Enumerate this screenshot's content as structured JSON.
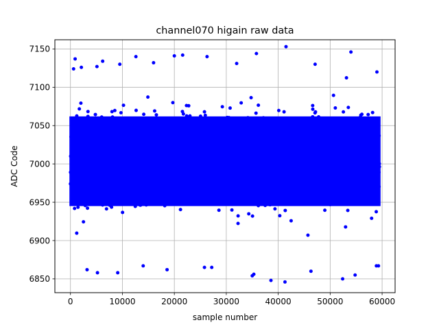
{
  "chart_data": {
    "type": "scatter",
    "title": "channel070 higain raw data",
    "xlabel": "sample number",
    "ylabel": "ADC Code",
    "xlim": [
      -3000,
      62500
    ],
    "ylim": [
      6832,
      7162
    ],
    "xticks": [
      0,
      10000,
      20000,
      30000,
      40000,
      50000,
      60000
    ],
    "xtick_labels": [
      "0",
      "10000",
      "20000",
      "30000",
      "40000",
      "50000",
      "60000"
    ],
    "yticks": [
      6850,
      6900,
      6950,
      7000,
      7050,
      7100,
      7150
    ],
    "ytick_labels": [
      "6850",
      "6900",
      "6950",
      "7000",
      "7050",
      "7100",
      "7150"
    ],
    "grid": true,
    "marker_color": "#0000ff",
    "n_samples": 59500,
    "dense_band": [
      6920,
      7095
    ],
    "outliers": [
      [
        600,
        7124
      ],
      [
        900,
        7137
      ],
      [
        2100,
        7126
      ],
      [
        5100,
        7127
      ],
      [
        6200,
        7134
      ],
      [
        9500,
        7130
      ],
      [
        12600,
        7140
      ],
      [
        16000,
        7132
      ],
      [
        20000,
        7141
      ],
      [
        21600,
        7142
      ],
      [
        26300,
        7140
      ],
      [
        32000,
        7131
      ],
      [
        35800,
        7144
      ],
      [
        41500,
        7153
      ],
      [
        47100,
        7130
      ],
      [
        54000,
        7146
      ],
      [
        59000,
        7120
      ],
      [
        3200,
        6862
      ],
      [
        5200,
        6858
      ],
      [
        9100,
        6858
      ],
      [
        18600,
        6862
      ],
      [
        25800,
        6865
      ],
      [
        27200,
        6865
      ],
      [
        35000,
        6854
      ],
      [
        35300,
        6856
      ],
      [
        38600,
        6848
      ],
      [
        41300,
        6846
      ],
      [
        52400,
        6850
      ],
      [
        54800,
        6855
      ],
      [
        58900,
        6867
      ],
      [
        59300,
        6867
      ],
      [
        46300,
        6860
      ],
      [
        14000,
        6867
      ]
    ]
  }
}
